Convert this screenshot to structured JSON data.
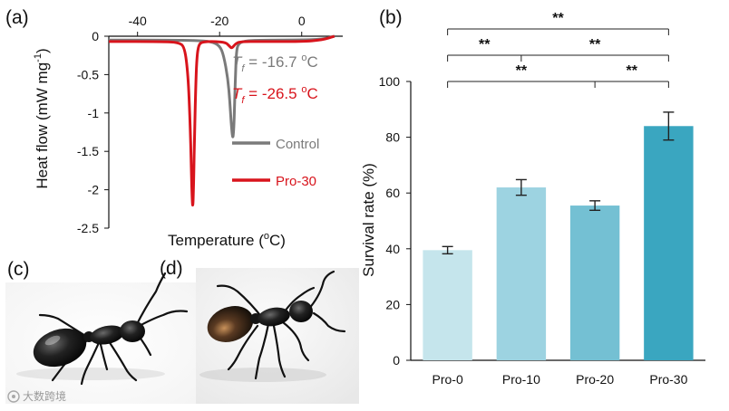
{
  "panels": {
    "a": "(a)",
    "b": "(b)",
    "c": "(c)",
    "d": "(d)"
  },
  "dsc_chart": {
    "type": "line",
    "title": "",
    "xlabel": "Temperature (°C)",
    "xlabel_prefix": "Temperature (",
    "xlabel_sup": "o",
    "xlabel_suffix": "C)",
    "ylabel": "Heat flow (mW mg⁻¹)",
    "ylabel_prefix": "Heat flow (mW mg",
    "ylabel_sup": "-1",
    "ylabel_suffix": ")",
    "xlim": [
      -47,
      10
    ],
    "ylim": [
      -2.5,
      0
    ],
    "xticks": [
      -40,
      -20,
      0
    ],
    "xtick_labels": [
      "-40",
      "-20",
      "0"
    ],
    "yticks": [
      0,
      -0.5,
      -1,
      -1.5,
      -2,
      -2.5
    ],
    "ytick_labels": [
      "0",
      "-0.5",
      "-1",
      "-1.5",
      "-2",
      "-2.5"
    ],
    "series": [
      {
        "name": "Control",
        "color": "#7a7a7a",
        "x": [
          -47,
          -32,
          -26,
          -22,
          -20,
          -19,
          -18,
          -17.5,
          -17.2,
          -16.9,
          -16.7,
          -16.5,
          -16.3,
          -16.1,
          -15.9,
          -15.5,
          -14,
          -10,
          0,
          5,
          8
        ],
        "y": [
          -0.05,
          -0.05,
          -0.055,
          -0.07,
          -0.12,
          -0.25,
          -0.55,
          -0.85,
          -1.12,
          -1.3,
          -1.32,
          -1.15,
          -0.8,
          -0.45,
          -0.2,
          -0.1,
          -0.06,
          -0.05,
          -0.05,
          -0.04,
          0
        ]
      },
      {
        "name": "Pro-30",
        "color": "#d8141c",
        "x": [
          -47,
          -34,
          -30,
          -28.5,
          -27.7,
          -27.2,
          -26.9,
          -26.7,
          -26.5,
          -26.3,
          -26.1,
          -25.8,
          -25.5,
          -25.1,
          -24.5,
          -23,
          -21,
          -18.5,
          -17.6,
          -17,
          -16.2,
          -15,
          -10,
          0,
          5,
          8
        ],
        "y": [
          -0.07,
          -0.07,
          -0.08,
          -0.14,
          -0.5,
          -1.1,
          -1.7,
          -2.12,
          -2.25,
          -1.85,
          -1.25,
          -0.6,
          -0.25,
          -0.12,
          -0.08,
          -0.07,
          -0.07,
          -0.08,
          -0.13,
          -0.16,
          -0.1,
          -0.07,
          -0.07,
          -0.07,
          -0.05,
          0
        ]
      }
    ],
    "annotations": [
      {
        "id": "tf_control",
        "symbol": "T",
        "sub": "f",
        "text": " = -16.7 ",
        "sup": "o",
        "unit": "C",
        "color": "#7a7a7a"
      },
      {
        "id": "tf_pro30",
        "symbol": "T",
        "sub": "f",
        "text": " = -26.5 ",
        "sup": "o",
        "unit": "C",
        "color": "#d8141c"
      }
    ],
    "legend": [
      {
        "name": "Control",
        "color": "#7a7a7a"
      },
      {
        "name": "Pro-30",
        "color": "#d8141c"
      }
    ]
  },
  "chart_data": {
    "type": "bar",
    "title": "",
    "xlabel": "",
    "ylabel": "Survival rate (%)",
    "categories": [
      "Pro-0",
      "Pro-10",
      "Pro-20",
      "Pro-30"
    ],
    "values": [
      39.5,
      62,
      55.5,
      84
    ],
    "errors": [
      1.3,
      2.8,
      1.7,
      5.0
    ],
    "colors": [
      "#c5e5ec",
      "#9dd3e1",
      "#74c0d3",
      "#3aa6c0"
    ],
    "ylim": [
      0,
      100
    ],
    "yticks": [
      0,
      20,
      40,
      60,
      80,
      100
    ],
    "ytick_labels": [
      "0",
      "20",
      "40",
      "60",
      "80",
      "100"
    ],
    "significance": [
      {
        "from": 0,
        "to": 3,
        "mid": null,
        "marks": [
          "**"
        ]
      },
      {
        "from": 0,
        "to": 3,
        "mid": 1,
        "marks": [
          "**",
          "**"
        ]
      },
      {
        "from": 0,
        "to": 3,
        "mid": 2,
        "marks": [
          "**",
          "**"
        ]
      }
    ]
  },
  "watermark": {
    "icon": "weibo-icon",
    "text": "大数跨境"
  }
}
